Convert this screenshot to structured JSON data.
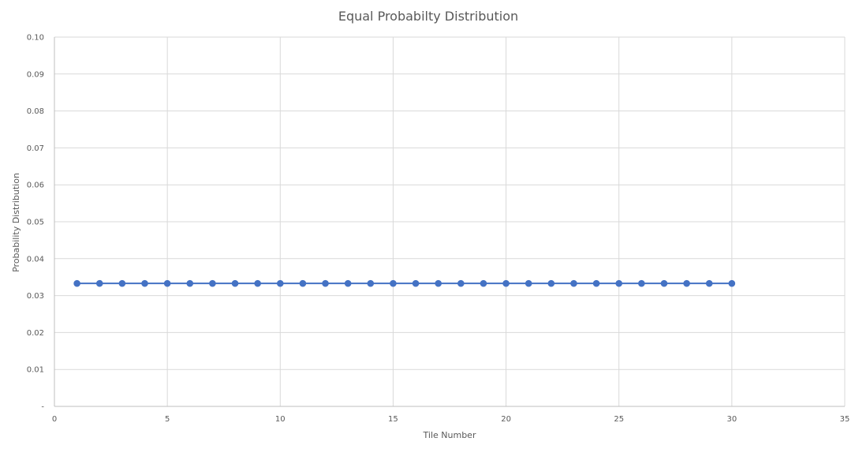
{
  "chart_data": {
    "type": "scatter",
    "title": "Equal Probabilty Distribution",
    "xlabel": "Tile Number",
    "ylabel": "Probability Distribution",
    "xlim": [
      0,
      35
    ],
    "ylim": [
      0,
      0.1
    ],
    "x_ticks": [
      "0",
      "5",
      "10",
      "15",
      "20",
      "25",
      "30",
      "35"
    ],
    "x_tick_values": [
      0,
      5,
      10,
      15,
      20,
      25,
      30,
      35
    ],
    "y_ticks": [
      "-",
      "0.01",
      "0.02",
      "0.03",
      "0.04",
      "0.05",
      "0.06",
      "0.07",
      "0.08",
      "0.09",
      "0.10"
    ],
    "y_tick_values": [
      0,
      0.01,
      0.02,
      0.03,
      0.04,
      0.05,
      0.06,
      0.07,
      0.08,
      0.09,
      0.1
    ],
    "grid": true,
    "legend": "none",
    "series": [
      {
        "color": "#4472c4",
        "line": true,
        "markers": true,
        "x": [
          1,
          2,
          3,
          4,
          5,
          6,
          7,
          8,
          9,
          10,
          11,
          12,
          13,
          14,
          15,
          16,
          17,
          18,
          19,
          20,
          21,
          22,
          23,
          24,
          25,
          26,
          27,
          28,
          29,
          30
        ],
        "y": [
          0.0333,
          0.0333,
          0.0333,
          0.0333,
          0.0333,
          0.0333,
          0.0333,
          0.0333,
          0.0333,
          0.0333,
          0.0333,
          0.0333,
          0.0333,
          0.0333,
          0.0333,
          0.0333,
          0.0333,
          0.0333,
          0.0333,
          0.0333,
          0.0333,
          0.0333,
          0.0333,
          0.0333,
          0.0333,
          0.0333,
          0.0333,
          0.0333,
          0.0333,
          0.0333
        ]
      }
    ]
  }
}
